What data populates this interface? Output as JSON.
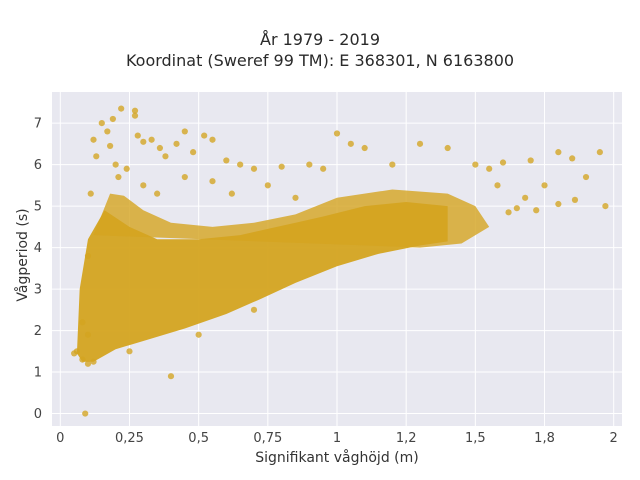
{
  "title_line1": "År 1979 - 2019",
  "title_line2": "Koordinat (Sweref 99 TM): E 368301, N 6163800",
  "chart_data": {
    "type": "scatter",
    "xlabel": "Signifikant våghöjd (m)",
    "ylabel": "Vågperiod (s)",
    "xlim": [
      -0.03,
      2.03
    ],
    "ylim": [
      -0.3,
      7.75
    ],
    "x_ticks": [
      0,
      0.25,
      0.5,
      0.75,
      1,
      1.25,
      1.5,
      1.75,
      2
    ],
    "x_tick_labels": [
      "0",
      "0,25",
      "0,5",
      "0,75",
      "1",
      "1,2",
      "1,5",
      "1,8",
      "2"
    ],
    "y_ticks": [
      0,
      1,
      2,
      3,
      4,
      5,
      6,
      7
    ],
    "y_tick_labels": [
      "0",
      "1",
      "2",
      "3",
      "4",
      "5",
      "6",
      "7"
    ],
    "grid": true,
    "marker_color": "#D4A420",
    "plot_bg": "#E8E8F0",
    "points": [
      [
        0.09,
        0.0
      ],
      [
        0.05,
        1.45
      ],
      [
        0.06,
        1.5
      ],
      [
        0.08,
        1.3
      ],
      [
        0.1,
        1.2
      ],
      [
        0.12,
        1.25
      ],
      [
        0.1,
        1.9
      ],
      [
        0.08,
        2.2
      ],
      [
        0.1,
        3.8
      ],
      [
        0.11,
        5.3
      ],
      [
        0.12,
        6.6
      ],
      [
        0.13,
        6.2
      ],
      [
        0.15,
        7.0
      ],
      [
        0.17,
        6.8
      ],
      [
        0.19,
        7.1
      ],
      [
        0.22,
        7.35
      ],
      [
        0.27,
        7.3
      ],
      [
        0.27,
        7.18
      ],
      [
        0.18,
        6.45
      ],
      [
        0.2,
        6.0
      ],
      [
        0.21,
        5.7
      ],
      [
        0.24,
        5.9
      ],
      [
        0.28,
        6.7
      ],
      [
        0.3,
        6.55
      ],
      [
        0.33,
        6.6
      ],
      [
        0.36,
        6.4
      ],
      [
        0.38,
        6.2
      ],
      [
        0.42,
        6.5
      ],
      [
        0.45,
        6.8
      ],
      [
        0.48,
        6.3
      ],
      [
        0.52,
        6.7
      ],
      [
        0.55,
        6.6
      ],
      [
        0.6,
        6.1
      ],
      [
        0.65,
        6.0
      ],
      [
        0.7,
        5.9
      ],
      [
        0.8,
        5.95
      ],
      [
        0.9,
        6.0
      ],
      [
        1.0,
        6.75
      ],
      [
        1.05,
        6.5
      ],
      [
        1.1,
        6.4
      ],
      [
        1.2,
        6.0
      ],
      [
        1.3,
        6.5
      ],
      [
        1.4,
        6.4
      ],
      [
        1.5,
        6.0
      ],
      [
        1.55,
        5.9
      ],
      [
        1.6,
        6.05
      ],
      [
        1.7,
        6.1
      ],
      [
        1.75,
        5.5
      ],
      [
        1.8,
        6.3
      ],
      [
        1.85,
        6.15
      ],
      [
        1.95,
        6.3
      ],
      [
        1.9,
        5.7
      ],
      [
        1.97,
        5.0
      ],
      [
        1.86,
        5.15
      ],
      [
        1.8,
        5.05
      ],
      [
        1.72,
        4.9
      ],
      [
        1.68,
        5.2
      ],
      [
        1.65,
        4.95
      ],
      [
        1.62,
        4.85
      ],
      [
        1.58,
        5.5
      ],
      [
        0.4,
        0.9
      ],
      [
        0.25,
        1.5
      ],
      [
        0.5,
        1.9
      ],
      [
        0.7,
        2.5
      ],
      [
        0.3,
        5.5
      ],
      [
        0.35,
        5.3
      ],
      [
        0.45,
        5.7
      ],
      [
        0.55,
        5.6
      ],
      [
        0.62,
        5.3
      ],
      [
        0.75,
        5.5
      ],
      [
        0.85,
        5.2
      ],
      [
        0.95,
        5.9
      ]
    ]
  }
}
